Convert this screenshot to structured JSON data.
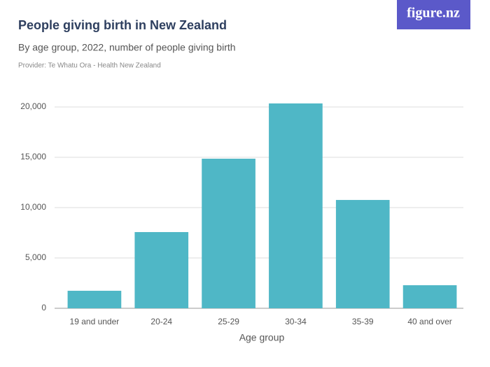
{
  "logo": "figure.nz",
  "chart_data": {
    "type": "bar",
    "title": "People giving birth in New Zealand",
    "subtitle": "By age group, 2022, number of people giving birth",
    "source": "Provider: Te Whatu Ora - Health New Zealand",
    "x_label": "Age group",
    "categories": [
      "19 and under",
      "20-24",
      "25-29",
      "30-34",
      "35-39",
      "40 and over"
    ],
    "values": [
      1740,
      7570,
      14860,
      20350,
      10760,
      2290
    ],
    "color": "#4fb7c6",
    "ylim": [
      0,
      20000
    ],
    "yticks": [
      0,
      {
        "value": 5000,
        "label": "5,000"
      },
      {
        "value": 10000,
        "label": "10,000"
      },
      {
        "value": 15000,
        "label": "15,000"
      },
      {
        "value": 20000,
        "label": "20,000"
      }
    ],
    "grid": true
  }
}
